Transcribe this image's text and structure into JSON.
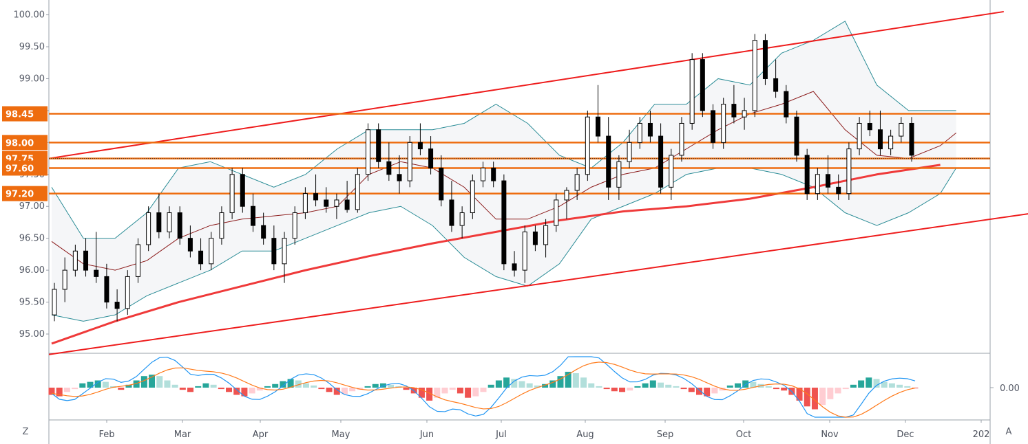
{
  "chart_data": [
    {
      "type": "candlestick",
      "title": "",
      "ylim": [
        94.72,
        100.2
      ],
      "yticks": [
        "95.00",
        "95.50",
        "96.00",
        "96.50",
        "97.00",
        "97.50",
        "98.00",
        "98.50",
        "99.00",
        "99.50",
        "100.00"
      ],
      "xticks": [
        "Feb",
        "Mar",
        "Apr",
        "May",
        "Jun",
        "Jul",
        "Aug",
        "Sep",
        "Oct",
        "Nov",
        "Dec",
        "202"
      ],
      "grid": false,
      "horizontal_levels": [
        {
          "label": "98.45",
          "value": 98.45,
          "color": "#ee6c0f"
        },
        {
          "label": "98.00",
          "value": 98.0,
          "color": "#ee6c0f"
        },
        {
          "label": "97.75",
          "value": 97.75,
          "color": "#ee6c0f"
        },
        {
          "label": "97.60",
          "value": 97.6,
          "color": "#ee6c0f"
        },
        {
          "label": "97.20",
          "value": 97.2,
          "color": "#ee6c0f"
        }
      ],
      "current_price_line": 97.75,
      "channel_upper": {
        "from": [
          0,
          97.75
        ],
        "to": [
          300,
          100.05
        ],
        "color": "#ee1c1c"
      },
      "channel_lower": {
        "from": [
          0,
          94.68
        ],
        "to": [
          366,
          97.3
        ],
        "color": "#ee1c1c"
      },
      "moving_average_long": [
        [
          0,
          94.85
        ],
        [
          20,
          95.2
        ],
        [
          40,
          95.5
        ],
        [
          60,
          95.75
        ],
        [
          80,
          96.0
        ],
        [
          100,
          96.22
        ],
        [
          120,
          96.42
        ],
        [
          140,
          96.6
        ],
        [
          160,
          96.78
        ],
        [
          180,
          96.92
        ],
        [
          200,
          97.0
        ],
        [
          220,
          97.12
        ],
        [
          240,
          97.3
        ],
        [
          260,
          97.5
        ],
        [
          280,
          97.65
        ]
      ],
      "moving_average_mid": [
        [
          0,
          96.45
        ],
        [
          10,
          96.1
        ],
        [
          20,
          96.0
        ],
        [
          30,
          96.15
        ],
        [
          40,
          96.5
        ],
        [
          50,
          96.7
        ],
        [
          60,
          96.8
        ],
        [
          70,
          96.85
        ],
        [
          80,
          96.9
        ],
        [
          90,
          97.0
        ],
        [
          100,
          97.5
        ],
        [
          110,
          97.7
        ],
        [
          120,
          97.6
        ],
        [
          130,
          97.3
        ],
        [
          140,
          96.8
        ],
        [
          150,
          96.8
        ],
        [
          160,
          97.0
        ],
        [
          170,
          97.3
        ],
        [
          180,
          97.5
        ],
        [
          190,
          97.6
        ],
        [
          200,
          97.9
        ],
        [
          210,
          98.2
        ],
        [
          220,
          98.45
        ],
        [
          230,
          98.6
        ],
        [
          240,
          98.8
        ],
        [
          250,
          98.2
        ],
        [
          260,
          97.8
        ],
        [
          270,
          97.75
        ],
        [
          280,
          97.95
        ],
        [
          285,
          98.15
        ]
      ],
      "bollinger_upper": [
        [
          0,
          97.3
        ],
        [
          10,
          96.5
        ],
        [
          20,
          96.5
        ],
        [
          30,
          96.9
        ],
        [
          40,
          97.6
        ],
        [
          50,
          97.7
        ],
        [
          60,
          97.5
        ],
        [
          70,
          97.3
        ],
        [
          80,
          97.5
        ],
        [
          90,
          97.9
        ],
        [
          100,
          98.2
        ],
        [
          110,
          98.2
        ],
        [
          120,
          98.2
        ],
        [
          130,
          98.3
        ],
        [
          140,
          98.6
        ],
        [
          150,
          98.3
        ],
        [
          160,
          97.8
        ],
        [
          170,
          97.6
        ],
        [
          180,
          98.0
        ],
        [
          190,
          98.6
        ],
        [
          200,
          98.6
        ],
        [
          210,
          99.0
        ],
        [
          220,
          98.9
        ],
        [
          230,
          99.4
        ],
        [
          240,
          99.6
        ],
        [
          250,
          99.9
        ],
        [
          260,
          98.9
        ],
        [
          270,
          98.5
        ],
        [
          280,
          98.5
        ],
        [
          285,
          98.5
        ]
      ],
      "bollinger_lower": [
        [
          0,
          95.3
        ],
        [
          10,
          95.2
        ],
        [
          20,
          95.3
        ],
        [
          30,
          95.6
        ],
        [
          40,
          95.8
        ],
        [
          50,
          96.0
        ],
        [
          60,
          96.3
        ],
        [
          70,
          96.3
        ],
        [
          80,
          96.5
        ],
        [
          90,
          96.7
        ],
        [
          100,
          96.9
        ],
        [
          110,
          97.0
        ],
        [
          120,
          96.7
        ],
        [
          130,
          96.2
        ],
        [
          140,
          95.9
        ],
        [
          150,
          95.75
        ],
        [
          160,
          96.1
        ],
        [
          170,
          96.8
        ],
        [
          180,
          97.0
        ],
        [
          190,
          97.2
        ],
        [
          200,
          97.5
        ],
        [
          210,
          97.6
        ],
        [
          220,
          97.6
        ],
        [
          230,
          97.5
        ],
        [
          240,
          97.3
        ],
        [
          250,
          96.9
        ],
        [
          260,
          96.7
        ],
        [
          270,
          96.9
        ],
        [
          280,
          97.2
        ],
        [
          285,
          97.6
        ]
      ],
      "candles": [
        {
          "o": 95.3,
          "h": 95.8,
          "l": 95.2,
          "c": 95.7
        },
        {
          "o": 95.7,
          "h": 96.2,
          "l": 95.5,
          "c": 96.0
        },
        {
          "o": 96.0,
          "h": 96.4,
          "l": 95.9,
          "c": 96.3
        },
        {
          "o": 96.3,
          "h": 96.5,
          "l": 95.9,
          "c": 96.0
        },
        {
          "o": 96.0,
          "h": 96.6,
          "l": 95.8,
          "c": 95.9
        },
        {
          "o": 95.9,
          "h": 96.1,
          "l": 95.4,
          "c": 95.5
        },
        {
          "o": 95.5,
          "h": 95.7,
          "l": 95.2,
          "c": 95.4
        },
        {
          "o": 95.4,
          "h": 96.0,
          "l": 95.3,
          "c": 95.9
        },
        {
          "o": 95.9,
          "h": 96.5,
          "l": 95.8,
          "c": 96.4
        },
        {
          "o": 96.4,
          "h": 97.0,
          "l": 96.3,
          "c": 96.9
        },
        {
          "o": 96.9,
          "h": 97.2,
          "l": 96.5,
          "c": 96.6
        },
        {
          "o": 96.6,
          "h": 97.0,
          "l": 96.5,
          "c": 96.9
        },
        {
          "o": 96.9,
          "h": 97.0,
          "l": 96.4,
          "c": 96.5
        },
        {
          "o": 96.5,
          "h": 96.7,
          "l": 96.2,
          "c": 96.3
        },
        {
          "o": 96.3,
          "h": 96.5,
          "l": 96.0,
          "c": 96.1
        },
        {
          "o": 96.1,
          "h": 96.6,
          "l": 96.0,
          "c": 96.5
        },
        {
          "o": 96.5,
          "h": 97.0,
          "l": 96.4,
          "c": 96.9
        },
        {
          "o": 96.9,
          "h": 97.6,
          "l": 96.8,
          "c": 97.5
        },
        {
          "o": 97.5,
          "h": 97.6,
          "l": 96.9,
          "c": 97.0
        },
        {
          "o": 97.0,
          "h": 97.2,
          "l": 96.6,
          "c": 96.7
        },
        {
          "o": 96.7,
          "h": 96.9,
          "l": 96.4,
          "c": 96.5
        },
        {
          "o": 96.5,
          "h": 96.7,
          "l": 96.0,
          "c": 96.1
        },
        {
          "o": 96.1,
          "h": 96.6,
          "l": 95.8,
          "c": 96.5
        },
        {
          "o": 96.5,
          "h": 97.0,
          "l": 96.4,
          "c": 96.9
        },
        {
          "o": 96.9,
          "h": 97.3,
          "l": 96.8,
          "c": 97.2
        },
        {
          "o": 97.2,
          "h": 97.5,
          "l": 97.0,
          "c": 97.1
        },
        {
          "o": 97.1,
          "h": 97.3,
          "l": 96.9,
          "c": 97.0
        },
        {
          "o": 97.0,
          "h": 97.2,
          "l": 96.8,
          "c": 97.1
        },
        {
          "o": 97.1,
          "h": 97.4,
          "l": 96.9,
          "c": 96.95
        },
        {
          "o": 96.95,
          "h": 97.6,
          "l": 96.9,
          "c": 97.5
        },
        {
          "o": 97.5,
          "h": 98.3,
          "l": 97.4,
          "c": 98.2
        },
        {
          "o": 98.2,
          "h": 98.3,
          "l": 97.6,
          "c": 97.7
        },
        {
          "o": 97.7,
          "h": 98.0,
          "l": 97.4,
          "c": 97.5
        },
        {
          "o": 97.5,
          "h": 97.8,
          "l": 97.2,
          "c": 97.4
        },
        {
          "o": 97.4,
          "h": 98.1,
          "l": 97.3,
          "c": 98.0
        },
        {
          "o": 98.0,
          "h": 98.3,
          "l": 97.8,
          "c": 97.9
        },
        {
          "o": 97.9,
          "h": 98.1,
          "l": 97.5,
          "c": 97.6
        },
        {
          "o": 97.6,
          "h": 97.8,
          "l": 97.0,
          "c": 97.1
        },
        {
          "o": 97.1,
          "h": 97.4,
          "l": 96.6,
          "c": 96.7
        },
        {
          "o": 96.7,
          "h": 97.0,
          "l": 96.5,
          "c": 96.9
        },
        {
          "o": 96.9,
          "h": 97.5,
          "l": 96.8,
          "c": 97.4
        },
        {
          "o": 97.4,
          "h": 97.7,
          "l": 97.3,
          "c": 97.6
        },
        {
          "o": 97.6,
          "h": 97.7,
          "l": 97.3,
          "c": 97.4
        },
        {
          "o": 97.4,
          "h": 97.5,
          "l": 96.0,
          "c": 96.1
        },
        {
          "o": 96.1,
          "h": 96.3,
          "l": 95.9,
          "c": 96.0
        },
        {
          "o": 96.0,
          "h": 96.7,
          "l": 95.8,
          "c": 96.6
        },
        {
          "o": 96.6,
          "h": 96.7,
          "l": 96.3,
          "c": 96.4
        },
        {
          "o": 96.4,
          "h": 96.8,
          "l": 96.2,
          "c": 96.7
        },
        {
          "o": 96.7,
          "h": 97.2,
          "l": 96.6,
          "c": 97.1
        },
        {
          "o": 97.1,
          "h": 97.3,
          "l": 96.8,
          "c": 97.25
        },
        {
          "o": 97.25,
          "h": 97.6,
          "l": 97.1,
          "c": 97.5
        },
        {
          "o": 97.5,
          "h": 98.5,
          "l": 97.4,
          "c": 98.4
        },
        {
          "o": 98.4,
          "h": 98.9,
          "l": 98.0,
          "c": 98.1
        },
        {
          "o": 98.1,
          "h": 98.4,
          "l": 97.1,
          "c": 97.3
        },
        {
          "o": 97.3,
          "h": 97.8,
          "l": 97.1,
          "c": 97.7
        },
        {
          "o": 97.7,
          "h": 98.2,
          "l": 97.6,
          "c": 98.0
        },
        {
          "o": 98.0,
          "h": 98.4,
          "l": 97.9,
          "c": 98.3
        },
        {
          "o": 98.3,
          "h": 98.5,
          "l": 98.0,
          "c": 98.1
        },
        {
          "o": 98.1,
          "h": 98.3,
          "l": 97.2,
          "c": 97.3
        },
        {
          "o": 97.3,
          "h": 97.9,
          "l": 97.1,
          "c": 97.8
        },
        {
          "o": 97.8,
          "h": 98.4,
          "l": 97.7,
          "c": 98.3
        },
        {
          "o": 98.3,
          "h": 99.4,
          "l": 98.2,
          "c": 99.3
        },
        {
          "o": 99.3,
          "h": 99.4,
          "l": 98.4,
          "c": 98.5
        },
        {
          "o": 98.5,
          "h": 98.6,
          "l": 97.9,
          "c": 98.0
        },
        {
          "o": 98.0,
          "h": 98.7,
          "l": 97.9,
          "c": 98.6
        },
        {
          "o": 98.6,
          "h": 98.9,
          "l": 98.3,
          "c": 98.4
        },
        {
          "o": 98.4,
          "h": 98.7,
          "l": 98.2,
          "c": 98.5
        },
        {
          "o": 98.5,
          "h": 99.7,
          "l": 98.4,
          "c": 99.6
        },
        {
          "o": 99.6,
          "h": 99.7,
          "l": 98.9,
          "c": 99.0
        },
        {
          "o": 99.0,
          "h": 99.3,
          "l": 98.7,
          "c": 98.8
        },
        {
          "o": 98.8,
          "h": 98.9,
          "l": 98.3,
          "c": 98.4
        },
        {
          "o": 98.4,
          "h": 98.5,
          "l": 97.7,
          "c": 97.8
        },
        {
          "o": 97.8,
          "h": 97.9,
          "l": 97.1,
          "c": 97.2
        },
        {
          "o": 97.2,
          "h": 97.6,
          "l": 97.1,
          "c": 97.5
        },
        {
          "o": 97.5,
          "h": 97.8,
          "l": 97.2,
          "c": 97.3
        },
        {
          "o": 97.3,
          "h": 97.5,
          "l": 97.1,
          "c": 97.2
        },
        {
          "o": 97.2,
          "h": 98.0,
          "l": 97.1,
          "c": 97.9
        },
        {
          "o": 97.9,
          "h": 98.4,
          "l": 97.8,
          "c": 98.3
        },
        {
          "o": 98.3,
          "h": 98.5,
          "l": 98.1,
          "c": 98.2
        },
        {
          "o": 98.2,
          "h": 98.5,
          "l": 97.8,
          "c": 97.9
        },
        {
          "o": 97.9,
          "h": 98.2,
          "l": 97.8,
          "c": 98.1
        },
        {
          "o": 98.1,
          "h": 98.4,
          "l": 98.0,
          "c": 98.3
        },
        {
          "o": 98.3,
          "h": 98.4,
          "l": 97.7,
          "c": 97.8
        }
      ]
    },
    {
      "type": "histogram",
      "title": "",
      "yticks": [
        "0.00"
      ],
      "series": [
        {
          "values": [
            -0.1,
            -0.12,
            -0.06,
            -0.02,
            0.06,
            0.08,
            0.1,
            0.08,
            0.02,
            -0.03,
            0.04,
            0.1,
            0.16,
            0.18,
            0.16,
            0.1,
            0.04,
            -0.03,
            -0.06,
            0.02,
            0.06,
            0.04,
            -0.02,
            -0.06,
            -0.1,
            -0.12,
            -0.08,
            -0.04,
            0.02,
            0.05,
            0.09,
            0.12,
            0.1,
            0.06,
            0.03,
            -0.02,
            -0.06,
            -0.1,
            -0.09,
            -0.05,
            -0.03,
            0.02,
            0.05,
            0.06,
            0.04,
            0.02,
            -0.03,
            -0.08,
            -0.14,
            -0.18,
            -0.14,
            -0.08,
            -0.03,
            -0.08,
            -0.14,
            -0.12,
            -0.06,
            0.04,
            0.1,
            0.14,
            0.12,
            0.09,
            0.06,
            0.03,
            0.05,
            0.1,
            0.16,
            0.22,
            0.2,
            0.14,
            0.06,
            0.02,
            -0.02,
            -0.05,
            -0.06,
            -0.04,
            0.02,
            0.06,
            0.1,
            0.07,
            0.04,
            0.02,
            -0.02,
            -0.06,
            -0.1,
            -0.12,
            -0.08,
            -0.04,
            0.03,
            0.06,
            0.1,
            0.08,
            0.05,
            0.02,
            -0.02,
            -0.04,
            -0.1,
            -0.18,
            -0.26,
            -0.3,
            -0.24,
            -0.16,
            -0.08,
            -0.02,
            0.04,
            0.1,
            0.14,
            0.12,
            0.08,
            0.06,
            0.04,
            0.02,
            -0.01
          ]
        }
      ]
    }
  ],
  "controls": {
    "zoom_label": "Z",
    "auto_label": "A"
  },
  "colors": {
    "up": "#ffffff",
    "down": "#000000",
    "level": "#ee6c0f",
    "channel": "#ee1c1c",
    "ma_long": "#ef3a3a",
    "ma_mid": "#8b1a1a",
    "bands": "#2a8c96",
    "macd": "#2196f3",
    "signal": "#ff7a1a",
    "hist_up": "#26a69a",
    "hist_up_light": "#b2dfdb",
    "hist_down": "#ef5350",
    "hist_down_light": "#ffcdd2"
  }
}
